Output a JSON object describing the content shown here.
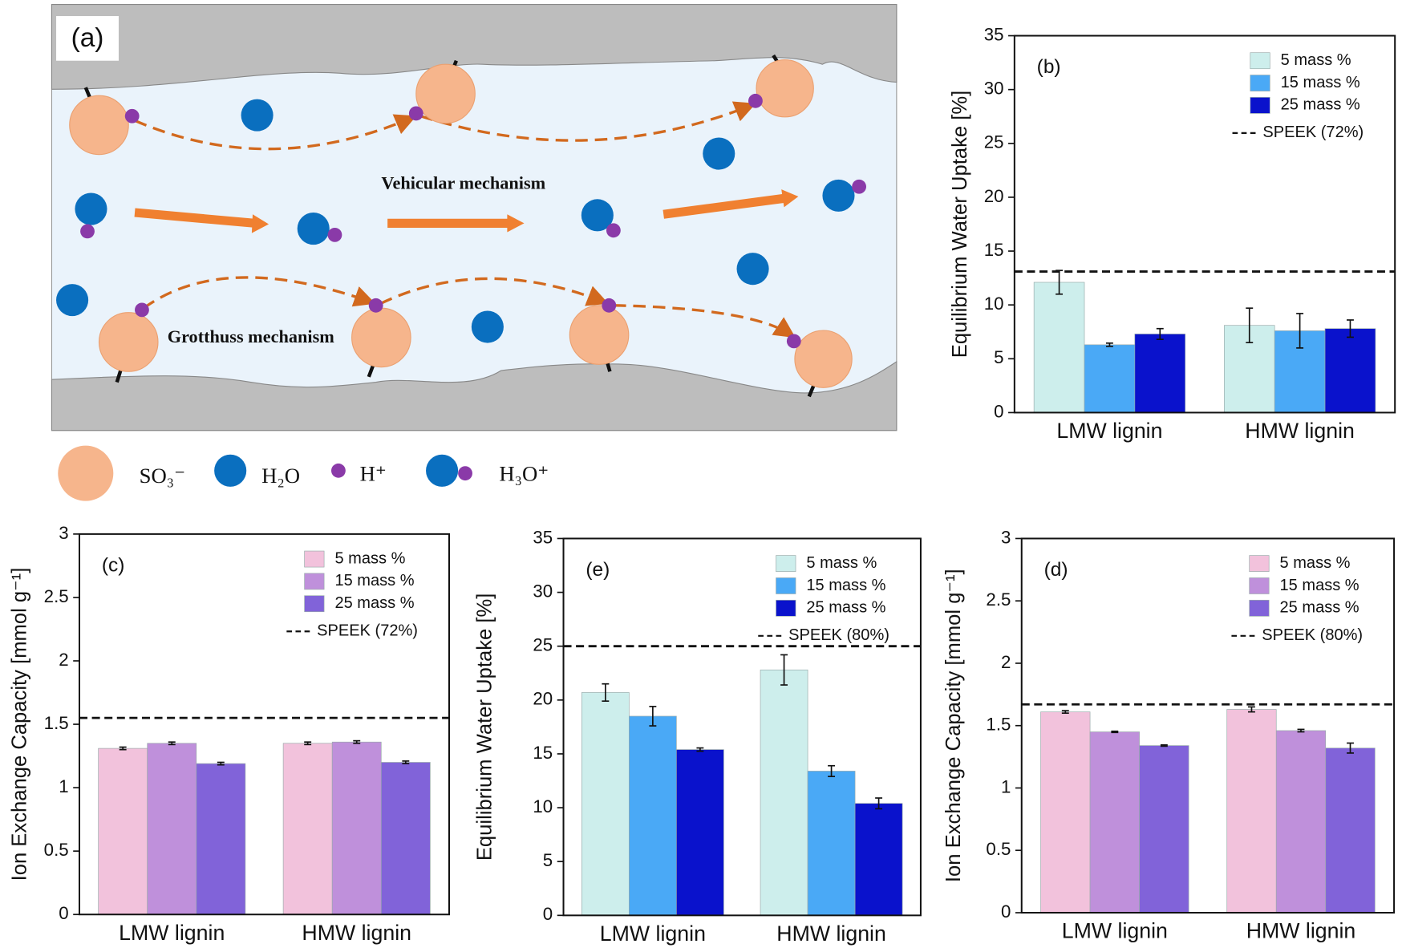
{
  "diagram": {
    "panel_label": "(a)",
    "vehicular": "Vehicular mechanism",
    "grotthuss": "Grotthuss mechanism",
    "legend": [
      "SO₃⁻",
      "H₂O",
      "H⁺",
      "H₃O⁺"
    ]
  },
  "chart_data": [
    {
      "type": "bar",
      "panel_label": "(b)",
      "ylabel": "Equilibrium Water Uptake [%]",
      "categories": [
        "LMW lignin",
        "HMW lignin"
      ],
      "series": [
        {
          "name": "5 mass %",
          "color": "#cdeeec",
          "values": [
            12.1,
            8.1
          ],
          "errors": [
            1.1,
            1.6
          ]
        },
        {
          "name": "15 mass %",
          "color": "#4aa9f6",
          "values": [
            6.3,
            7.6
          ],
          "errors": [
            0.15,
            1.6
          ]
        },
        {
          "name": "25 mass %",
          "color": "#0a12cc",
          "values": [
            7.3,
            7.8
          ],
          "errors": [
            0.5,
            0.8
          ]
        }
      ],
      "reference": {
        "label": "SPEEK (72%)",
        "value": 13.1
      },
      "ylim": [
        0,
        35
      ],
      "yticks": [
        0,
        5,
        10,
        15,
        20,
        25,
        30,
        35
      ]
    },
    {
      "type": "bar",
      "panel_label": "(c)",
      "ylabel": "Ion Exchange Capacity [mmol g⁻¹]",
      "categories": [
        "LMW lignin",
        "HMW lignin"
      ],
      "series": [
        {
          "name": "5 mass %",
          "color": "#f2c2dc",
          "values": [
            1.31,
            1.35
          ],
          "errors": [
            0.01,
            0.01
          ]
        },
        {
          "name": "15 mass %",
          "color": "#bf90db",
          "values": [
            1.35,
            1.36
          ],
          "errors": [
            0.01,
            0.01
          ]
        },
        {
          "name": "25 mass %",
          "color": "#8163d9",
          "values": [
            1.19,
            1.2
          ],
          "errors": [
            0.01,
            0.01
          ]
        }
      ],
      "reference": {
        "label": "SPEEK (72%)",
        "value": 1.55
      },
      "ylim": [
        0,
        3
      ],
      "yticks": [
        0,
        0.5,
        1,
        1.5,
        2,
        2.5,
        3
      ]
    },
    {
      "type": "bar",
      "panel_label": "(e)",
      "ylabel": "Equilibrium Water Uptake [%]",
      "categories": [
        "LMW lignin",
        "HMW lignin"
      ],
      "series": [
        {
          "name": "5 mass %",
          "color": "#cdeeec",
          "values": [
            20.7,
            22.8
          ],
          "errors": [
            0.8,
            1.4
          ]
        },
        {
          "name": "15 mass %",
          "color": "#4aa9f6",
          "values": [
            18.5,
            13.4
          ],
          "errors": [
            0.9,
            0.5
          ]
        },
        {
          "name": "25 mass %",
          "color": "#0a12cc",
          "values": [
            15.4,
            10.4
          ],
          "errors": [
            0.15,
            0.5
          ]
        }
      ],
      "reference": {
        "label": "SPEEK (80%)",
        "value": 25
      },
      "ylim": [
        0,
        35
      ],
      "yticks": [
        0,
        5,
        10,
        15,
        20,
        25,
        30,
        35
      ]
    },
    {
      "type": "bar",
      "panel_label": "(d)",
      "ylabel": "Ion Exchange Capacity [mmol g⁻¹]",
      "categories": [
        "LMW lignin",
        "HMW lignin"
      ],
      "series": [
        {
          "name": "5 mass %",
          "color": "#f2c2dc",
          "values": [
            1.61,
            1.63
          ],
          "errors": [
            0.01,
            0.02
          ]
        },
        {
          "name": "15 mass %",
          "color": "#bf90db",
          "values": [
            1.45,
            1.46
          ],
          "errors": [
            0.005,
            0.01
          ]
        },
        {
          "name": "25 mass %",
          "color": "#8163d9",
          "values": [
            1.34,
            1.32
          ],
          "errors": [
            0.005,
            0.04
          ]
        }
      ],
      "reference": {
        "label": "SPEEK (80%)",
        "value": 1.67
      },
      "ylim": [
        0,
        3
      ],
      "yticks": [
        0,
        0.5,
        1,
        1.5,
        2,
        2.5,
        3
      ]
    }
  ]
}
